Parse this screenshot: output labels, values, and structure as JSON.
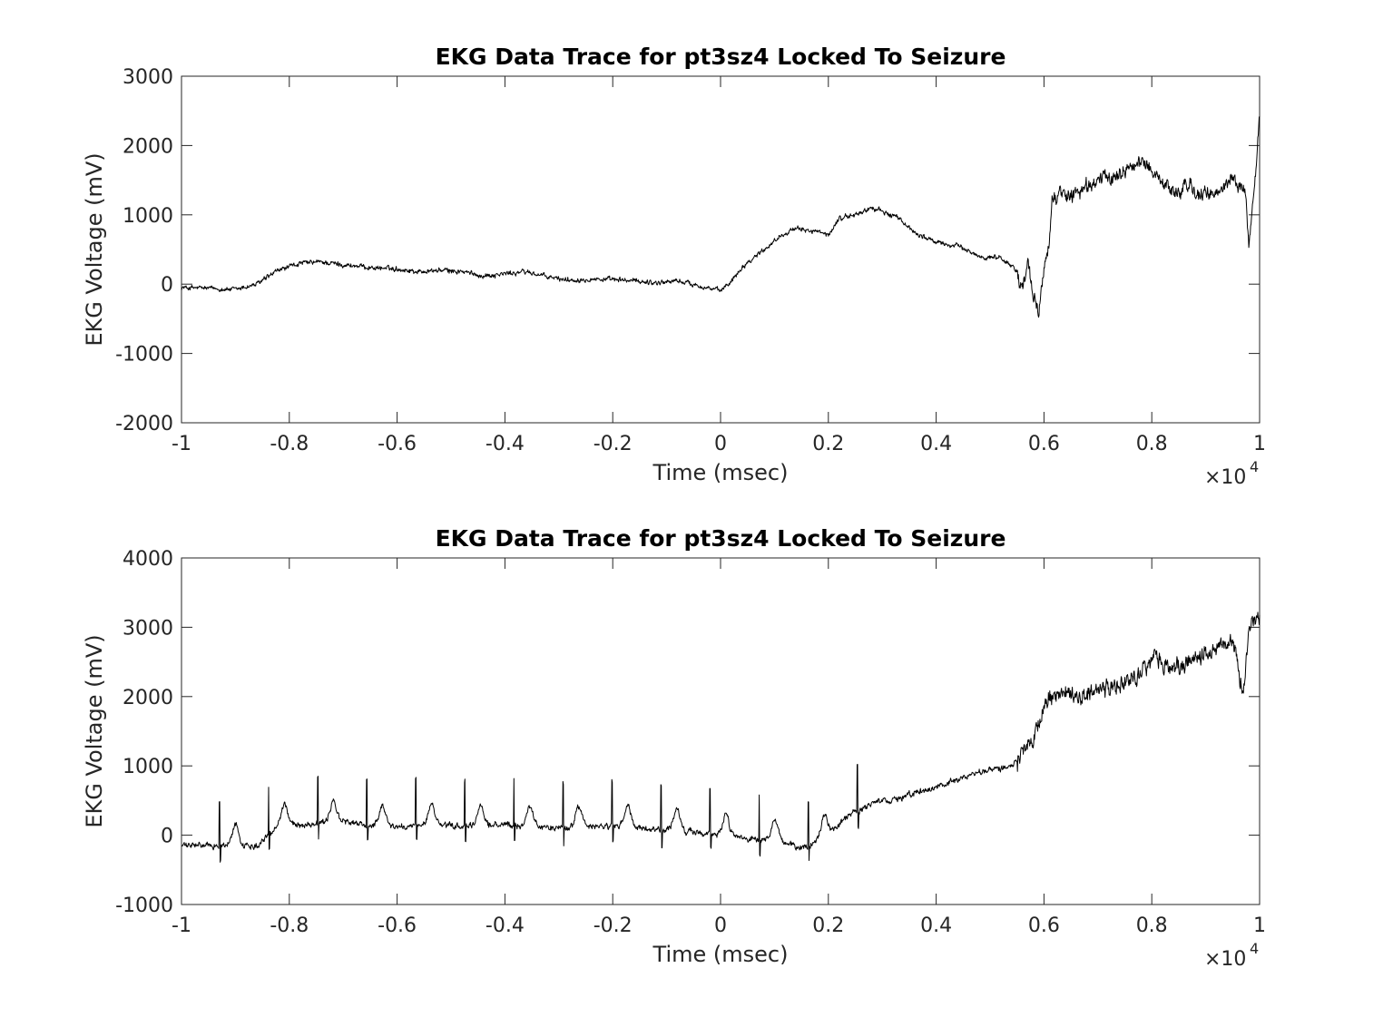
{
  "chart_data": [
    {
      "type": "line",
      "title": "EKG Data Trace for pt3sz4 Locked To Seizure",
      "xlabel": "Time (msec)",
      "ylabel": "EKG Voltage (mV)",
      "xlim": [
        -10000,
        10000
      ],
      "ylim": [
        -2000,
        3000
      ],
      "x_exponent_label": "×10",
      "x_exponent": "4",
      "x_tick_values": [
        -10000,
        -8000,
        -6000,
        -4000,
        -2000,
        0,
        2000,
        4000,
        6000,
        8000,
        10000
      ],
      "x_tick_labels": [
        "-1",
        "-0.8",
        "-0.6",
        "-0.4",
        "-0.2",
        "0",
        "0.2",
        "0.4",
        "0.6",
        "0.8",
        "1"
      ],
      "y_tick_values": [
        -2000,
        -1000,
        0,
        1000,
        2000,
        3000
      ],
      "y_tick_labels": [
        "-2000",
        "-1000",
        "0",
        "1000",
        "2000",
        "3000"
      ],
      "grid": false,
      "series": [
        {
          "color": "#000000",
          "noise": 25,
          "x": [
            -10000,
            -9500,
            -9000,
            -8600,
            -8200,
            -7800,
            -7400,
            -7000,
            -6500,
            -6000,
            -5600,
            -5200,
            -4800,
            -4400,
            -4000,
            -3600,
            -3200,
            -2800,
            -2400,
            -2000,
            -1600,
            -1200,
            -800,
            -400,
            0,
            200,
            400,
            800,
            1200,
            1500,
            1800,
            2000,
            2200,
            2500,
            2800,
            3000,
            3300,
            3600,
            4000,
            4400,
            4800,
            5200,
            5500,
            5600,
            5700,
            5800,
            5900,
            6000,
            6100,
            6150,
            6300,
            6600,
            7000,
            7300,
            7600,
            7900,
            8100,
            8300,
            8500,
            8700,
            8900,
            9100,
            9300,
            9500,
            9650,
            9750,
            9800,
            9900,
            10000
          ],
          "y": [
            -50,
            -60,
            -80,
            0,
            200,
            300,
            320,
            280,
            240,
            220,
            180,
            200,
            180,
            120,
            150,
            180,
            100,
            60,
            80,
            60,
            50,
            20,
            50,
            -20,
            -100,
            50,
            250,
            500,
            750,
            800,
            750,
            700,
            950,
            1000,
            1100,
            1050,
            950,
            750,
            600,
            550,
            400,
            380,
            200,
            -100,
            300,
            -200,
            -400,
            200,
            700,
            1200,
            1300,
            1300,
            1500,
            1550,
            1700,
            1750,
            1550,
            1400,
            1300,
            1450,
            1250,
            1300,
            1350,
            1550,
            1400,
            1300,
            500,
            1400,
            2400
          ]
        }
      ]
    },
    {
      "type": "line",
      "title": "EKG Data Trace for pt3sz4 Locked To Seizure",
      "xlabel": "Time (msec)",
      "ylabel": "EKG Voltage (mV)",
      "xlim": [
        -10000,
        10000
      ],
      "ylim": [
        -1000,
        4000
      ],
      "x_exponent_label": "×10",
      "x_exponent": "4",
      "x_tick_values": [
        -10000,
        -8000,
        -6000,
        -4000,
        -2000,
        0,
        2000,
        4000,
        6000,
        8000,
        10000
      ],
      "x_tick_labels": [
        "-1",
        "-0.8",
        "-0.6",
        "-0.4",
        "-0.2",
        "0",
        "0.2",
        "0.4",
        "0.6",
        "0.8",
        "1"
      ],
      "y_tick_values": [
        -1000,
        0,
        1000,
        2000,
        3000,
        4000
      ],
      "y_tick_labels": [
        "-1000",
        "0",
        "1000",
        "2000",
        "3000",
        "4000"
      ],
      "grid": false,
      "series": [
        {
          "color": "#000000",
          "noise": 30,
          "beat_start": -9300,
          "beat_period": 910,
          "beat_end": 2600,
          "beat_spike": 650,
          "t_wave": 300,
          "x": [
            -10000,
            -9700,
            -9400,
            -9000,
            -8600,
            -8200,
            -7800,
            -7400,
            -7000,
            -6600,
            -6200,
            -5800,
            -5400,
            -5000,
            -4600,
            -4200,
            -3800,
            -3400,
            -3000,
            -2600,
            -2200,
            -1800,
            -1400,
            -1000,
            -600,
            -200,
            0,
            400,
            800,
            1200,
            1500,
            1800,
            2100,
            2400,
            2700,
            3000,
            3400,
            3800,
            4200,
            4600,
            5000,
            5400,
            5700,
            6000,
            6100,
            6300,
            6700,
            7100,
            7500,
            7900,
            8100,
            8300,
            8700,
            9100,
            9500,
            9600,
            9700,
            9800,
            9900,
            10000
          ],
          "y": [
            -150,
            -150,
            -150,
            -150,
            -150,
            150,
            150,
            180,
            200,
            150,
            130,
            120,
            150,
            130,
            120,
            150,
            140,
            120,
            110,
            110,
            130,
            120,
            80,
            80,
            50,
            20,
            0,
            -50,
            -80,
            -100,
            -200,
            -100,
            100,
            300,
            400,
            500,
            550,
            650,
            750,
            850,
            950,
            1000,
            1300,
            1800,
            2000,
            2000,
            2000,
            2100,
            2200,
            2400,
            2600,
            2400,
            2500,
            2700,
            2800,
            2500,
            2000,
            3000,
            3100,
            3150
          ]
        }
      ]
    }
  ]
}
